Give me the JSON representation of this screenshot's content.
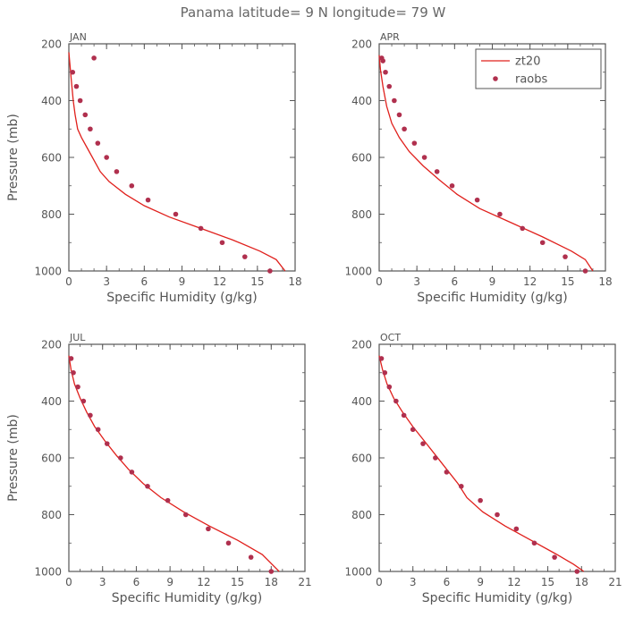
{
  "page": {
    "title": "Panama  latitude= 9 N longitude= 79 W"
  },
  "colors": {
    "model_line": "#e0201c",
    "obs_point": "#b0304e",
    "frame": "#555555",
    "text": "#555555"
  },
  "chart_data": [
    {
      "type": "line",
      "panel_label": "JAN",
      "xlabel": "Specific Humidity (g/kg)",
      "ylabel": "Pressure (mb)",
      "xlim": [
        0,
        18
      ],
      "ylim": [
        1000,
        200
      ],
      "y_inverted": true,
      "xticks": [
        0,
        3,
        6,
        9,
        12,
        15,
        18
      ],
      "yticks": [
        200,
        400,
        600,
        800,
        1000
      ],
      "series": [
        {
          "kind": "line",
          "x": [
            0.0,
            0.1,
            0.2,
            0.35,
            0.5,
            0.7,
            1.0,
            1.5,
            2.0,
            2.5,
            3.2,
            4.5,
            6.0,
            8.0,
            10.5,
            13.0,
            15.2,
            16.5,
            17.2
          ],
          "y": [
            230,
            280,
            330,
            400,
            450,
            500,
            530,
            570,
            610,
            650,
            685,
            730,
            770,
            810,
            850,
            890,
            930,
            960,
            1000
          ]
        },
        {
          "kind": "points",
          "x": [
            0.3,
            0.6,
            0.9,
            1.3,
            1.7,
            2.3,
            3.0,
            3.8,
            5.0,
            6.3,
            8.5,
            10.5,
            12.2,
            14.0,
            16.0
          ],
          "y": [
            300,
            350,
            400,
            450,
            500,
            550,
            600,
            650,
            700,
            750,
            800,
            850,
            900,
            950,
            1000
          ]
        },
        {
          "kind": "points",
          "x": [
            2.0
          ],
          "y": [
            250
          ]
        }
      ]
    },
    {
      "type": "line",
      "panel_label": "APR",
      "xlabel": "Specific Humidity (g/kg)",
      "ylabel": "",
      "xlim": [
        0,
        18
      ],
      "ylim": [
        1000,
        200
      ],
      "y_inverted": true,
      "xticks": [
        0,
        3,
        6,
        9,
        12,
        15,
        18
      ],
      "yticks": [
        200,
        400,
        600,
        800,
        1000
      ],
      "legend": {
        "placement": "top-right",
        "entries": [
          {
            "kind": "line",
            "name": "zt20"
          },
          {
            "kind": "points",
            "name": "raobs"
          }
        ]
      },
      "series": [
        {
          "kind": "line",
          "x": [
            0.0,
            0.1,
            0.3,
            0.6,
            1.0,
            1.6,
            2.4,
            3.5,
            4.8,
            6.2,
            8.0,
            10.5,
            13.0,
            15.3,
            16.4,
            17.0
          ],
          "y": [
            240,
            290,
            350,
            420,
            480,
            530,
            580,
            630,
            680,
            730,
            780,
            830,
            880,
            930,
            960,
            1000
          ]
        },
        {
          "kind": "points",
          "x": [
            0.2,
            0.3,
            0.5,
            0.8,
            1.2,
            1.6,
            2.0,
            2.8,
            3.6,
            4.6,
            5.8,
            7.8,
            9.6,
            11.4,
            13.0,
            14.8,
            16.4
          ],
          "y": [
            250,
            260,
            300,
            350,
            400,
            450,
            500,
            550,
            600,
            650,
            700,
            750,
            800,
            850,
            900,
            950,
            1000
          ]
        }
      ]
    },
    {
      "type": "line",
      "panel_label": "JUL",
      "xlabel": "Specific Humidity (g/kg)",
      "ylabel": "Pressure (mb)",
      "xlim": [
        0,
        21
      ],
      "ylim": [
        1000,
        200
      ],
      "y_inverted": true,
      "xticks": [
        0,
        3,
        6,
        9,
        12,
        15,
        18,
        21
      ],
      "yticks": [
        200,
        400,
        600,
        800,
        1000
      ],
      "series": [
        {
          "kind": "line",
          "x": [
            0.0,
            0.2,
            0.5,
            1.0,
            1.6,
            2.3,
            3.2,
            4.2,
            5.3,
            6.6,
            8.2,
            10.2,
            12.5,
            15.0,
            17.2,
            18.7
          ],
          "y": [
            240,
            290,
            340,
            390,
            440,
            490,
            540,
            590,
            640,
            690,
            740,
            790,
            840,
            890,
            940,
            1000
          ]
        },
        {
          "kind": "points",
          "x": [
            0.2,
            0.4,
            0.8,
            1.3,
            1.9,
            2.6,
            3.4,
            4.6,
            5.6,
            7.0,
            8.8,
            10.4,
            12.4,
            14.2,
            16.2,
            18.0
          ],
          "y": [
            250,
            300,
            350,
            400,
            450,
            500,
            550,
            600,
            650,
            700,
            750,
            800,
            850,
            900,
            950,
            1000
          ]
        }
      ]
    },
    {
      "type": "line",
      "panel_label": "OCT",
      "xlabel": "Specific Humidity (g/kg)",
      "ylabel": "",
      "xlim": [
        0,
        21
      ],
      "ylim": [
        1000,
        200
      ],
      "y_inverted": true,
      "xticks": [
        0,
        3,
        6,
        9,
        12,
        15,
        18,
        21
      ],
      "yticks": [
        200,
        400,
        600,
        800,
        1000
      ],
      "series": [
        {
          "kind": "line",
          "x": [
            0.0,
            0.3,
            0.7,
            1.3,
            2.1,
            3.0,
            4.0,
            5.0,
            6.0,
            7.0,
            7.8,
            9.2,
            11.2,
            13.5,
            15.8,
            17.3,
            18.2
          ],
          "y": [
            240,
            290,
            340,
            390,
            440,
            490,
            540,
            590,
            640,
            690,
            740,
            790,
            840,
            890,
            940,
            975,
            1000
          ]
        },
        {
          "kind": "points",
          "x": [
            0.2,
            0.5,
            0.9,
            1.5,
            2.2,
            3.0,
            3.9,
            5.0,
            6.0,
            7.3,
            9.0,
            10.5,
            12.2,
            13.8,
            15.6,
            17.6
          ],
          "y": [
            250,
            300,
            350,
            400,
            450,
            500,
            550,
            600,
            650,
            700,
            750,
            800,
            850,
            900,
            950,
            1000
          ]
        }
      ]
    }
  ]
}
